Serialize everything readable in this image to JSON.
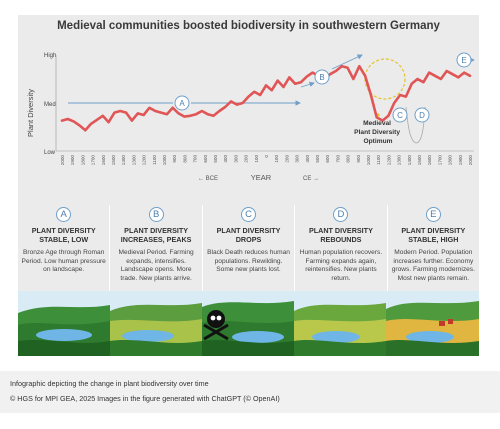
{
  "title": "Medieval communities boosted biodiversity in southwestern Germany",
  "chart_data": {
    "type": "line",
    "ylabel": "Plant Diversity",
    "xlabel": "YEAR",
    "era_left": "← BCE",
    "era_right": "CE →",
    "y_tick_labels": [
      "High",
      "Med",
      "Low"
    ],
    "x_ticks": [
      "2000",
      "1900",
      "1800",
      "1700",
      "1600",
      "1500",
      "1400",
      "1300",
      "1200",
      "1100",
      "1000",
      "900",
      "800",
      "700",
      "600",
      "500",
      "400",
      "300",
      "200",
      "100",
      "0",
      "100",
      "200",
      "300",
      "400",
      "500",
      "600",
      "700",
      "800",
      "900",
      "1000",
      "1100",
      "1200",
      "1300",
      "1400",
      "1500",
      "1600",
      "1700",
      "1800",
      "1900",
      "2000"
    ],
    "ylim": [
      0,
      100
    ],
    "series": [
      {
        "color": "#e05555",
        "values": [
          28,
          30,
          27,
          22,
          16,
          24,
          29,
          34,
          26,
          38,
          40,
          38,
          28,
          37,
          35,
          44,
          40,
          38,
          36,
          44,
          37,
          33,
          34,
          36,
          40,
          36,
          34,
          40,
          45,
          52,
          48,
          50,
          58,
          64,
          60,
          72,
          66,
          78,
          70,
          82,
          74,
          76,
          83,
          88,
          84,
          80,
          86,
          90,
          96,
          94,
          80,
          96,
          84,
          60,
          32,
          28,
          34,
          50,
          60,
          58,
          74,
          80,
          76,
          88,
          84,
          80,
          90,
          86,
          82,
          88,
          84
        ]
      }
    ],
    "annotations": [
      {
        "label": "A"
      },
      {
        "label": "B"
      },
      {
        "label": "C"
      },
      {
        "label": "D"
      },
      {
        "label": "E"
      },
      {
        "label": "Medieval Plant Diversity Optimum"
      }
    ]
  },
  "panels": [
    {
      "badge": "A",
      "title": "PLANT DIVERSITY STABLE, LOW",
      "desc": "Bronze Age through Roman Period. Low human pressure on landscape."
    },
    {
      "badge": "B",
      "title": "PLANT DIVERSITY INCREASES, PEAKS",
      "desc": "Medieval Period. Farming expands, intensifies. Landscape opens. More trade. New plants arrive."
    },
    {
      "badge": "C",
      "title": "PLANT DIVERSITY DROPS",
      "desc": "Black Death reduces human populations. Rewilding. Some new plants lost."
    },
    {
      "badge": "D",
      "title": "PLANT DIVERSITY REBOUNDS",
      "desc": "Human population recovers. Farming expands again, reintensifies. New plants return."
    },
    {
      "badge": "E",
      "title": "PLANT DIVERSITY STABLE, HIGH",
      "desc": "Modern Period. Population increases further. Economy grows. Farming modernizes. Most new plants remain."
    }
  ],
  "caption": {
    "title": "Infographic depicting the change in plant biodiversity over time",
    "credit": "© HGS for MPI GEA, 2025 Images in the figure generated with ChatGPT (© OpenAI)"
  },
  "colors": {
    "line": "#e05555",
    "accent_blue": "#4d7fae",
    "optimum_dash": "#e6c229",
    "background": "#ebebeb"
  }
}
